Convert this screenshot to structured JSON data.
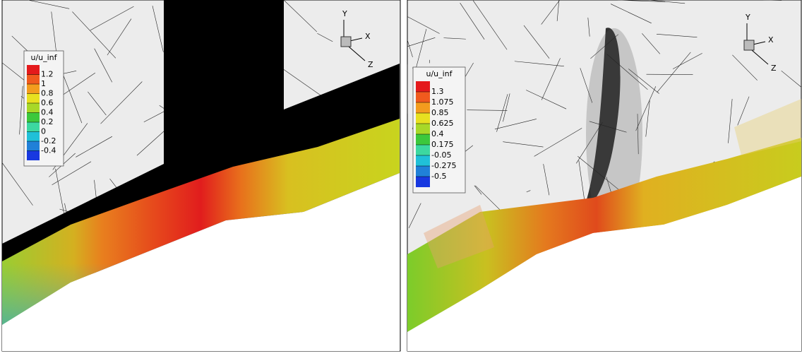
{
  "panels": [
    {
      "legend": {
        "title": "u/u_inf",
        "labels": [
          "1.2",
          "1",
          "0.8",
          "0.6",
          "0.4",
          "0.2",
          "0",
          "-0.2",
          "-0.4"
        ]
      },
      "axes": {
        "x": "X",
        "y": "Y",
        "z": "Z"
      }
    },
    {
      "legend": {
        "title": "u/u_inf",
        "labels": [
          "1.3",
          "1.075",
          "0.85",
          "0.625",
          "0.4",
          "0.175",
          "-0.05",
          "-0.275",
          "-0.5"
        ]
      },
      "axes": {
        "x": "X",
        "y": "Y",
        "z": "Z"
      }
    }
  ]
}
